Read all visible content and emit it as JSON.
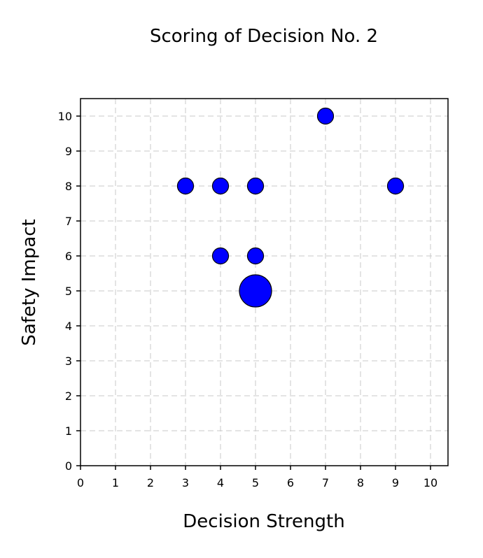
{
  "chart_data": {
    "type": "scatter",
    "title": "Scoring of Decision No. 2",
    "xlabel": "Decision Strength",
    "ylabel": "Safety Impact",
    "xlim": [
      0,
      10.5
    ],
    "ylim": [
      0,
      10.5
    ],
    "xticks": [
      0,
      1,
      2,
      3,
      4,
      5,
      6,
      7,
      8,
      9,
      10
    ],
    "yticks": [
      0,
      1,
      2,
      3,
      4,
      5,
      6,
      7,
      8,
      9,
      10
    ],
    "grid": true,
    "point_color": "#0000ff",
    "points": [
      {
        "x": 7,
        "y": 10,
        "count": 1
      },
      {
        "x": 3,
        "y": 8,
        "count": 1
      },
      {
        "x": 4,
        "y": 8,
        "count": 1
      },
      {
        "x": 5,
        "y": 8,
        "count": 1
      },
      {
        "x": 9,
        "y": 8,
        "count": 1
      },
      {
        "x": 4,
        "y": 6,
        "count": 1
      },
      {
        "x": 5,
        "y": 6,
        "count": 1
      },
      {
        "x": 5,
        "y": 5,
        "count": 4
      }
    ]
  }
}
